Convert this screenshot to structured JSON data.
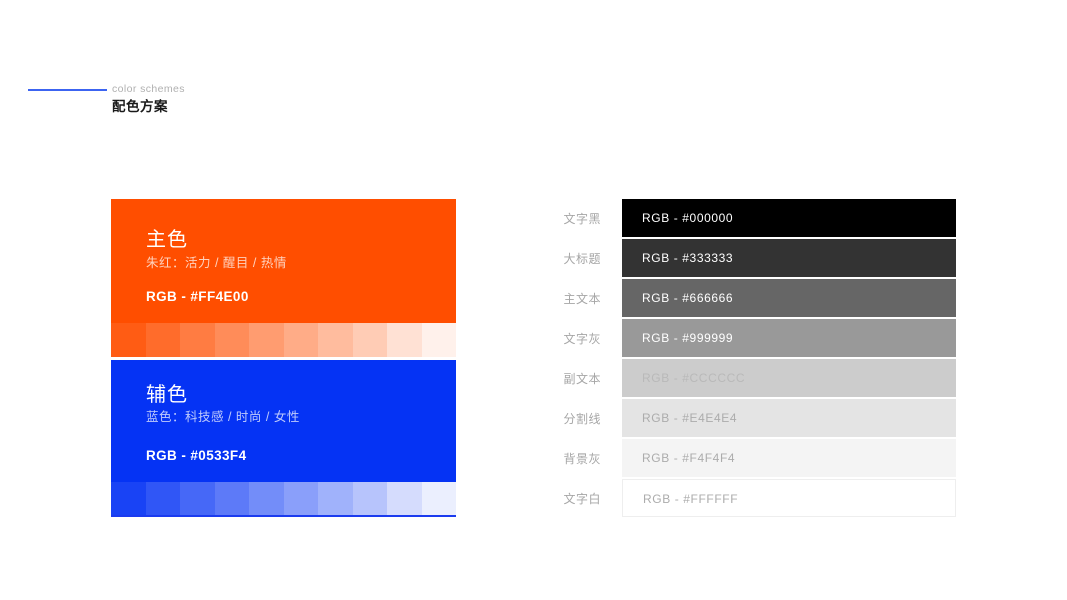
{
  "header": {
    "eyebrow": "color schemes",
    "title": "配色方案",
    "accent_line_color": "#3C64F1"
  },
  "primary_card": {
    "title": "主色",
    "subtitle": "朱红：活力 / 醒目 / 热情",
    "rgb_label": "RGB - #FF4E00",
    "color": "#FF4E00",
    "tints": [
      "#FF5C14",
      "#FF6C2B",
      "#FF7C42",
      "#FF8C59",
      "#FF9C70",
      "#FFAC87",
      "#FFBC9E",
      "#FFCCB5",
      "#FFE1D4",
      "#FFF1EB"
    ]
  },
  "secondary_card": {
    "title": "辅色",
    "subtitle": "蓝色：科技感 / 时尚 / 女性",
    "rgb_label": "RGB - #0533F4",
    "color": "#0533F4",
    "underline_color": "#1B3BEF",
    "tints": [
      "#1943F5",
      "#3056F6",
      "#4668F7",
      "#5D7AF8",
      "#738DF9",
      "#8A9FFA",
      "#A0B2FB",
      "#B7C4FC",
      "#D5DCFD",
      "#EBEFFE"
    ]
  },
  "grayscale": {
    "rows": [
      {
        "label": "文字黑",
        "value": "RGB - #000000",
        "color": "#000000",
        "text_color": "#FFFFFF"
      },
      {
        "label": "大标题",
        "value": "RGB - #333333",
        "color": "#333333",
        "text_color": "#FFFFFF"
      },
      {
        "label": "主文本",
        "value": "RGB - #666666",
        "color": "#666666",
        "text_color": "#FFFFFF"
      },
      {
        "label": "文字灰",
        "value": "RGB - #999999",
        "color": "#999999",
        "text_color": "#FFFFFF"
      },
      {
        "label": "副文本",
        "value": "RGB - #CCCCCC",
        "color": "#CCCCCC",
        "text_color": "#B9B9B9"
      },
      {
        "label": "分割线",
        "value": "RGB - #E4E4E4",
        "color": "#E4E4E4",
        "text_color": "#ACACAC"
      },
      {
        "label": "背景灰",
        "value": "RGB - #F4F4F4",
        "color": "#F4F4F4",
        "text_color": "#ACACAC"
      },
      {
        "label": "文字白",
        "value": "RGB - #FFFFFF",
        "color": "#FFFFFF",
        "text_color": "#ACACAC",
        "border": "#EEEEEE"
      }
    ]
  }
}
